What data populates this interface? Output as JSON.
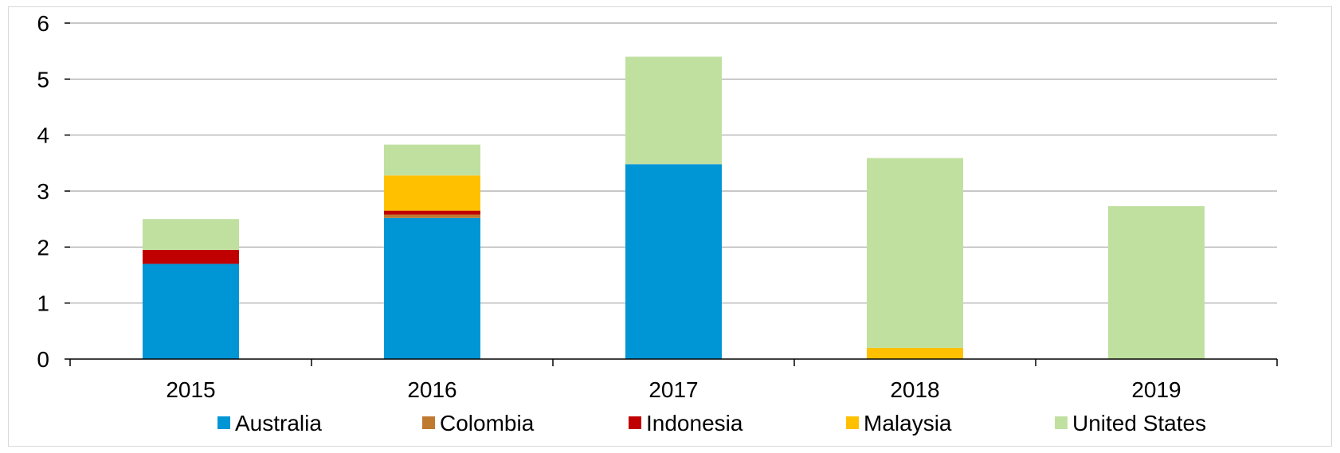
{
  "chart_data": {
    "type": "bar",
    "stacked": true,
    "categories": [
      "2015",
      "2016",
      "2017",
      "2018",
      "2019"
    ],
    "series": [
      {
        "name": "Australia",
        "color": "#0096d6",
        "values": [
          1.7,
          2.52,
          3.48,
          0,
          0
        ]
      },
      {
        "name": "Colombia",
        "color": "#c07a30",
        "values": [
          0,
          0.06,
          0,
          0,
          0
        ]
      },
      {
        "name": "Indonesia",
        "color": "#c00000",
        "values": [
          0.25,
          0.07,
          0,
          0,
          0
        ]
      },
      {
        "name": "Malaysia",
        "color": "#ffc000",
        "values": [
          0,
          0.63,
          0,
          0.2,
          0
        ]
      },
      {
        "name": "United States",
        "color": "#c0e0a0",
        "values": [
          0.55,
          0.55,
          1.92,
          3.39,
          2.73
        ]
      }
    ],
    "ylim": [
      0,
      6
    ],
    "yticks": [
      "0",
      "1",
      "2",
      "3",
      "4",
      "5",
      "6"
    ],
    "title": "",
    "xlabel": "",
    "ylabel": "",
    "grid": true,
    "legend_position": "bottom"
  }
}
